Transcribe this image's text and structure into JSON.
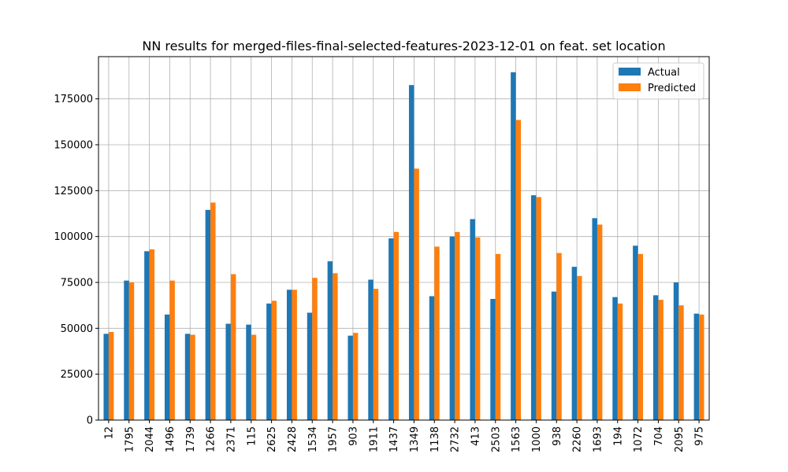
{
  "chart_data": {
    "type": "bar",
    "title": "NN results for merged-files-final-selected-features-2023-12-01 on feat. set location",
    "xlabel": "",
    "ylabel": "",
    "categories": [
      "12",
      "1795",
      "2044",
      "1496",
      "1739",
      "1266",
      "2371",
      "115",
      "2625",
      "2428",
      "1534",
      "1957",
      "903",
      "1911",
      "1437",
      "1349",
      "1138",
      "2732",
      "413",
      "2503",
      "1563",
      "1000",
      "938",
      "2260",
      "1693",
      "194",
      "1072",
      "704",
      "2095",
      "975"
    ],
    "series": [
      {
        "name": "Actual",
        "color": "#1f77b4",
        "values": [
          47000,
          76000,
          92000,
          57500,
          47000,
          114500,
          52500,
          52000,
          63500,
          71000,
          58500,
          86500,
          46000,
          76500,
          99000,
          182500,
          67500,
          100000,
          109500,
          66000,
          189500,
          122500,
          70000,
          83500,
          110000,
          67000,
          95000,
          68000,
          75000,
          58000
        ]
      },
      {
        "name": "Predicted",
        "color": "#ff7f0e",
        "values": [
          48000,
          75000,
          93000,
          76000,
          46500,
          118500,
          79500,
          46500,
          65000,
          71000,
          77500,
          80000,
          47500,
          71500,
          102500,
          137000,
          94500,
          102500,
          99500,
          90500,
          163500,
          121500,
          91000,
          78500,
          106500,
          63500,
          90500,
          65500,
          62500,
          57500
        ]
      }
    ],
    "ylim": [
      0,
      198000
    ],
    "yticks": [
      0,
      25000,
      50000,
      75000,
      100000,
      125000,
      150000,
      175000
    ],
    "ytick_labels": [
      "0",
      "25000",
      "50000",
      "75000",
      "100000",
      "125000",
      "150000",
      "175000"
    ],
    "grid": true,
    "legend_position": "top-right"
  }
}
